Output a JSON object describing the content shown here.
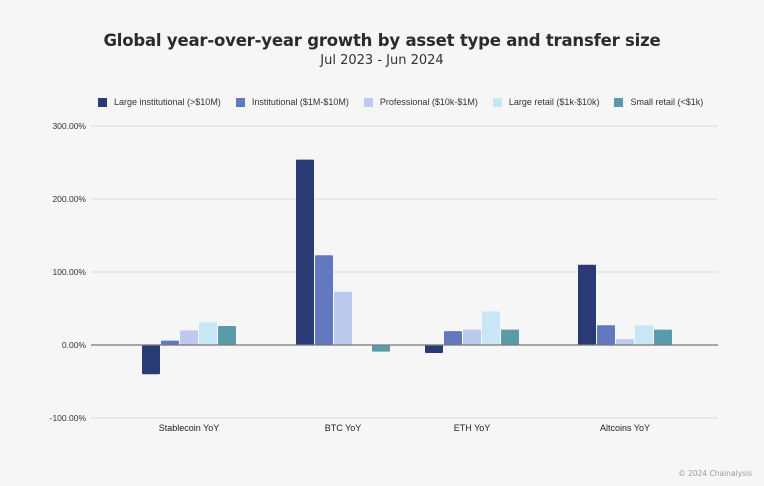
{
  "chart_data": {
    "type": "bar",
    "title": "Global year-over-year growth by asset type and transfer size",
    "subtitle": "Jul 2023 - Jun 2024",
    "xlabel": "",
    "ylabel": "",
    "ylim": [
      -100,
      300
    ],
    "y_ticks": [
      300,
      200,
      100,
      0,
      -100
    ],
    "y_tick_labels": [
      "300.00%",
      "200.00%",
      "100.00%",
      "0.00%",
      "-100.00%"
    ],
    "grid": true,
    "legend_position": "top",
    "categories": [
      "Stablecoin YoY",
      "BTC YoY",
      "ETH YoY",
      "Altcoins YoY"
    ],
    "series": [
      {
        "name": "Large institutional (>$10M)",
        "color": "#2a3a75",
        "values": [
          -40,
          254,
          -11,
          110
        ]
      },
      {
        "name": "Institutional ($1M-$10M)",
        "color": "#6279bf",
        "values": [
          6,
          123,
          19,
          27
        ]
      },
      {
        "name": "Professional ($10k-$1M)",
        "color": "#bccaee",
        "values": [
          20,
          73,
          21,
          8
        ]
      },
      {
        "name": "Large retail ($1k-$10k)",
        "color": "#c9e6f7",
        "values": [
          31,
          1,
          46,
          27
        ]
      },
      {
        "name": "Small retail (<$1k)",
        "color": "#5b9aa8",
        "values": [
          26,
          -9,
          21,
          21
        ]
      }
    ]
  },
  "footer": {
    "copyright": "© 2024 Chainalysis"
  }
}
